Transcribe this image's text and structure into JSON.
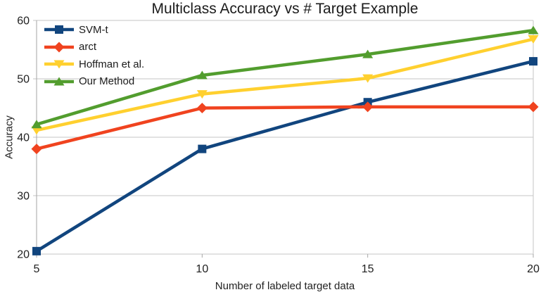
{
  "chart_data": {
    "type": "line",
    "title": "Multiclass Accuracy vs # Target Example",
    "xlabel": "Number of labeled target data",
    "ylabel": "Accuracy",
    "x": [
      5,
      10,
      15,
      20
    ],
    "x_ticks": [
      5,
      10,
      15,
      20
    ],
    "xlim": [
      5,
      20
    ],
    "ylim": [
      20,
      60
    ],
    "y_tick_step": 10,
    "grid": "horizontal-only",
    "legend_position": "top-left-inside",
    "series": [
      {
        "name": "SVM-t",
        "marker": "square",
        "color": "#11457e",
        "values": [
          20.5,
          38,
          46,
          53
        ]
      },
      {
        "name": "arct",
        "marker": "diamond",
        "color": "#f0431f",
        "values": [
          38,
          45,
          45.2,
          45.2
        ]
      },
      {
        "name": "Hoffman et al.",
        "marker": "triangle-down",
        "color": "#ffd02f",
        "values": [
          41.2,
          47.4,
          50.1,
          56.8
        ]
      },
      {
        "name": "Our Method",
        "marker": "triangle-up",
        "color": "#529d2e",
        "values": [
          42.2,
          50.6,
          54.2,
          58.3
        ]
      }
    ],
    "colors": {
      "grid": "#c6c6c6",
      "axis": "#a6a6a6",
      "text": "#1f1f1f",
      "background": "#ffffff"
    }
  }
}
